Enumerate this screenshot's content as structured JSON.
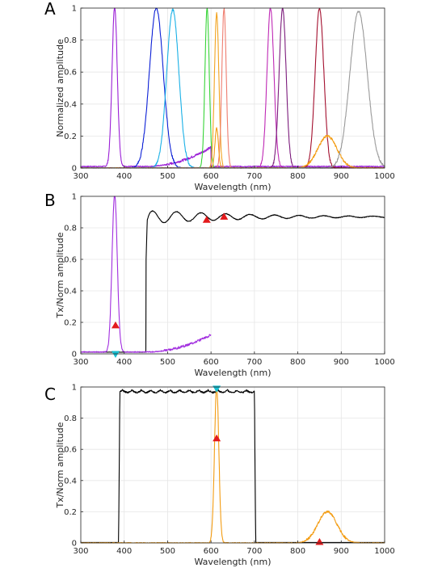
{
  "chart_data": [
    {
      "panel": "A",
      "type": "line",
      "xlabel": "Wavelength (nm)",
      "ylabel": "Normalized amplitude",
      "xlim": [
        300,
        1000
      ],
      "ylim": [
        0,
        1
      ],
      "xticks": [
        300,
        400,
        500,
        600,
        700,
        800,
        900,
        1000
      ],
      "yticks": [
        0,
        0.2,
        0.4,
        0.6,
        0.8,
        1
      ],
      "grid": true,
      "series": [
        {
          "color": "#9b1fd6",
          "peaks": [
            {
              "center": 378,
              "width": 6,
              "amp": 1.0
            }
          ],
          "baseline": 0.01,
          "ramp": {
            "from": 450,
            "to": 600,
            "max": 0.12
          }
        },
        {
          "color": "#0b1fd6",
          "peaks": [
            {
              "center": 474,
              "width": 16,
              "amp": 1.0
            }
          ]
        },
        {
          "color": "#19b0e6",
          "peaks": [
            {
              "center": 512,
              "width": 14,
              "amp": 0.99
            }
          ]
        },
        {
          "color": "#37d437",
          "peaks": [
            {
              "center": 591,
              "width": 5,
              "amp": 1.0
            }
          ]
        },
        {
          "color": "#f2a31f",
          "peaks": [
            {
              "center": 613,
              "width": 5,
              "amp": 0.97
            }
          ]
        },
        {
          "color": "#ef7d6f",
          "peaks": [
            {
              "center": 630,
              "width": 5,
              "amp": 1.0
            }
          ]
        },
        {
          "color": "#bf29b5",
          "peaks": [
            {
              "center": 737,
              "width": 8,
              "amp": 1.0
            }
          ]
        },
        {
          "color": "#7c1c7c",
          "peaks": [
            {
              "center": 765,
              "width": 8,
              "amp": 1.0
            }
          ]
        },
        {
          "color": "#a30f2e",
          "peaks": [
            {
              "center": 850,
              "width": 10,
              "amp": 1.0
            }
          ]
        },
        {
          "color": "#f39c12",
          "peaks": [
            {
              "center": 868,
              "width": 22,
              "amp": 0.2
            },
            {
              "center": 613,
              "width": 4,
              "amp": 0.25
            }
          ]
        },
        {
          "color": "#999999",
          "peaks": [
            {
              "center": 940,
              "width": 20,
              "amp": 0.98
            }
          ]
        }
      ]
    },
    {
      "panel": "B",
      "type": "line",
      "xlabel": "Wavelength (nm)",
      "ylabel": "Tx/Norm amplitude",
      "xlim": [
        300,
        1000
      ],
      "ylim": [
        0,
        1
      ],
      "xticks": [
        300,
        400,
        500,
        600,
        700,
        800,
        900,
        1000
      ],
      "yticks": [
        0,
        0.2,
        0.4,
        0.6,
        0.8,
        1
      ],
      "grid": true,
      "series": [
        {
          "kind": "longpass",
          "color": "#000000",
          "cut_on": 450,
          "level": 0.87
        },
        {
          "kind": "led",
          "color": "#a12ddf",
          "center": 378,
          "width": 6,
          "amp": 1.0,
          "baseline": 0.012,
          "ramp": {
            "from": 450,
            "to": 600,
            "max": 0.11
          },
          "xmax": 600
        }
      ],
      "markers": [
        {
          "shape": "triangle-up",
          "color": "#e31a1c",
          "x": 380,
          "y": 0.18
        },
        {
          "shape": "triangle-up",
          "color": "#e31a1c",
          "x": 590,
          "y": 0.85
        },
        {
          "shape": "triangle-up",
          "color": "#e31a1c",
          "x": 630,
          "y": 0.87
        },
        {
          "shape": "triangle-down",
          "color": "#17becf",
          "x": 380,
          "y": 0.0
        }
      ]
    },
    {
      "panel": "C",
      "type": "line",
      "xlabel": "Wavelength (nm)",
      "ylabel": "Tx/Norm amplitude",
      "xlim": [
        300,
        1000
      ],
      "ylim": [
        0,
        1
      ],
      "xticks": [
        300,
        400,
        500,
        600,
        700,
        800,
        900,
        1000
      ],
      "yticks": [
        0,
        0.2,
        0.4,
        0.6,
        0.8,
        1
      ],
      "grid": true,
      "series": [
        {
          "kind": "bandpass",
          "color": "#000000",
          "from": 390,
          "to": 700,
          "level": 0.98
        },
        {
          "kind": "led",
          "color": "#f39c12",
          "peaks": [
            {
              "center": 613,
              "width": 5,
              "amp": 1.0
            },
            {
              "center": 868,
              "width": 22,
              "amp": 0.2
            }
          ]
        }
      ],
      "markers": [
        {
          "shape": "triangle-up",
          "color": "#e31a1c",
          "x": 613,
          "y": 0.67
        },
        {
          "shape": "triangle-up",
          "color": "#e31a1c",
          "x": 850,
          "y": 0.005
        },
        {
          "shape": "triangle-down",
          "color": "#17becf",
          "x": 613,
          "y": 0.99
        }
      ]
    }
  ]
}
